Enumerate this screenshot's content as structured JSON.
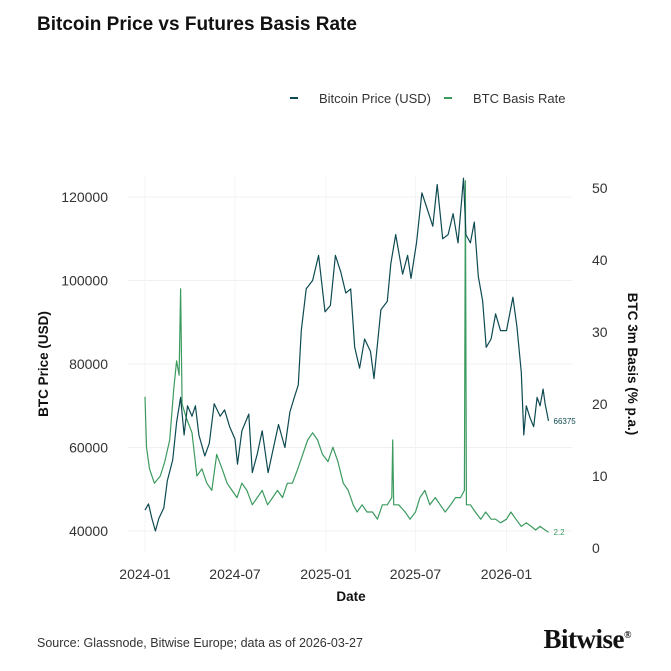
{
  "title": "Bitcoin Price vs Futures Basis Rate",
  "source": "Source: Glassnode, Bitwise Europe; data as of 2026-03-27",
  "logo": "Bitwise®",
  "chart_data": {
    "type": "line",
    "title": "Bitcoin Price vs Futures Basis Rate",
    "xlabel": "Date",
    "ylabel_left": "BTC Price (USD)",
    "ylabel_right": "BTC 3m Basis (% p.a.)",
    "x_ticks": [
      "2024-01",
      "2024-07",
      "2025-01",
      "2025-07",
      "2026-01"
    ],
    "y_left_ticks": [
      40000,
      60000,
      80000,
      100000,
      120000
    ],
    "y_right_ticks": [
      0,
      10,
      20,
      30,
      40,
      50
    ],
    "y_left_range": [
      36000,
      124000
    ],
    "y_right_range": [
      -1,
      52
    ],
    "grid": true,
    "legend_position": "top-right",
    "colors": {
      "price": "#0e4a52",
      "basis": "#3c9a5f"
    },
    "series": [
      {
        "name": "Bitcoin Price (USD)",
        "axis": "left",
        "end_label": "66375",
        "points": [
          [
            "2024-01-01",
            45000
          ],
          [
            "2024-01-08",
            46500
          ],
          [
            "2024-01-15",
            43000
          ],
          [
            "2024-01-22",
            40000
          ],
          [
            "2024-01-29",
            43000
          ],
          [
            "2024-02-08",
            45500
          ],
          [
            "2024-02-15",
            52000
          ],
          [
            "2024-02-26",
            57000
          ],
          [
            "2024-03-05",
            66000
          ],
          [
            "2024-03-13",
            72000
          ],
          [
            "2024-03-20",
            63000
          ],
          [
            "2024-03-27",
            70000
          ],
          [
            "2024-04-05",
            67500
          ],
          [
            "2024-04-12",
            70000
          ],
          [
            "2024-04-19",
            63000
          ],
          [
            "2024-05-01",
            58000
          ],
          [
            "2024-05-10",
            61000
          ],
          [
            "2024-05-20",
            70500
          ],
          [
            "2024-06-01",
            67500
          ],
          [
            "2024-06-10",
            69000
          ],
          [
            "2024-06-20",
            65000
          ],
          [
            "2024-07-01",
            62000
          ],
          [
            "2024-07-06",
            56000
          ],
          [
            "2024-07-15",
            64000
          ],
          [
            "2024-07-29",
            68000
          ],
          [
            "2024-08-05",
            54000
          ],
          [
            "2024-08-15",
            58500
          ],
          [
            "2024-08-25",
            64000
          ],
          [
            "2024-09-06",
            54000
          ],
          [
            "2024-09-15",
            59000
          ],
          [
            "2024-09-27",
            65500
          ],
          [
            "2024-10-10",
            60000
          ],
          [
            "2024-10-20",
            68500
          ],
          [
            "2024-10-29",
            72000
          ],
          [
            "2024-11-06",
            75000
          ],
          [
            "2024-11-12",
            88000
          ],
          [
            "2024-11-22",
            98000
          ],
          [
            "2024-12-05",
            100000
          ],
          [
            "2024-12-17",
            106000
          ],
          [
            "2024-12-30",
            92500
          ],
          [
            "2025-01-10",
            94000
          ],
          [
            "2025-01-20",
            106000
          ],
          [
            "2025-01-31",
            102000
          ],
          [
            "2025-02-10",
            97000
          ],
          [
            "2025-02-20",
            98000
          ],
          [
            "2025-02-28",
            84000
          ],
          [
            "2025-03-10",
            79000
          ],
          [
            "2025-03-20",
            86000
          ],
          [
            "2025-04-01",
            83000
          ],
          [
            "2025-04-08",
            76500
          ],
          [
            "2025-04-22",
            93000
          ],
          [
            "2025-05-05",
            95000
          ],
          [
            "2025-05-12",
            104000
          ],
          [
            "2025-05-22",
            111000
          ],
          [
            "2025-06-05",
            101500
          ],
          [
            "2025-06-15",
            106000
          ],
          [
            "2025-06-22",
            100500
          ],
          [
            "2025-07-03",
            109000
          ],
          [
            "2025-07-14",
            121000
          ],
          [
            "2025-07-25",
            117000
          ],
          [
            "2025-08-05",
            113000
          ],
          [
            "2025-08-14",
            123000
          ],
          [
            "2025-08-25",
            110000
          ],
          [
            "2025-09-05",
            111000
          ],
          [
            "2025-09-15",
            116000
          ],
          [
            "2025-09-25",
            109000
          ],
          [
            "2025-10-06",
            124500
          ],
          [
            "2025-10-11",
            111000
          ],
          [
            "2025-10-20",
            109000
          ],
          [
            "2025-10-28",
            114000
          ],
          [
            "2025-11-05",
            101000
          ],
          [
            "2025-11-14",
            95000
          ],
          [
            "2025-11-21",
            84000
          ],
          [
            "2025-12-01",
            86000
          ],
          [
            "2025-12-10",
            92000
          ],
          [
            "2025-12-20",
            88000
          ],
          [
            "2026-01-01",
            88000
          ],
          [
            "2026-01-14",
            96000
          ],
          [
            "2026-01-22",
            89000
          ],
          [
            "2026-01-31",
            78000
          ],
          [
            "2026-02-05",
            63000
          ],
          [
            "2026-02-10",
            70000
          ],
          [
            "2026-02-18",
            67000
          ],
          [
            "2026-02-25",
            65000
          ],
          [
            "2026-03-04",
            72000
          ],
          [
            "2026-03-10",
            70000
          ],
          [
            "2026-03-16",
            74000
          ],
          [
            "2026-03-20",
            70500
          ],
          [
            "2026-03-27",
            66375
          ]
        ]
      },
      {
        "name": "BTC Basis Rate",
        "axis": "right",
        "end_label": "2.2",
        "points": [
          [
            "2024-01-01",
            21
          ],
          [
            "2024-01-04",
            14
          ],
          [
            "2024-01-10",
            11
          ],
          [
            "2024-01-20",
            9
          ],
          [
            "2024-02-01",
            10
          ],
          [
            "2024-02-10",
            12
          ],
          [
            "2024-02-20",
            15
          ],
          [
            "2024-02-28",
            22
          ],
          [
            "2024-03-05",
            26
          ],
          [
            "2024-03-10",
            24
          ],
          [
            "2024-03-13",
            36
          ],
          [
            "2024-03-16",
            20
          ],
          [
            "2024-03-25",
            18
          ],
          [
            "2024-04-05",
            16
          ],
          [
            "2024-04-15",
            10
          ],
          [
            "2024-04-25",
            11
          ],
          [
            "2024-05-05",
            9
          ],
          [
            "2024-05-15",
            8
          ],
          [
            "2024-05-25",
            13
          ],
          [
            "2024-06-05",
            11
          ],
          [
            "2024-06-15",
            9
          ],
          [
            "2024-06-25",
            8
          ],
          [
            "2024-07-05",
            7
          ],
          [
            "2024-07-15",
            9
          ],
          [
            "2024-07-25",
            8
          ],
          [
            "2024-08-05",
            6
          ],
          [
            "2024-08-15",
            7
          ],
          [
            "2024-08-25",
            8
          ],
          [
            "2024-09-05",
            6
          ],
          [
            "2024-09-15",
            7
          ],
          [
            "2024-09-25",
            8
          ],
          [
            "2024-10-05",
            7
          ],
          [
            "2024-10-15",
            9
          ],
          [
            "2024-10-25",
            9
          ],
          [
            "2024-11-05",
            11
          ],
          [
            "2024-11-15",
            13
          ],
          [
            "2024-11-25",
            15
          ],
          [
            "2024-12-05",
            16
          ],
          [
            "2024-12-15",
            15
          ],
          [
            "2024-12-25",
            13
          ],
          [
            "2025-01-05",
            12
          ],
          [
            "2025-01-15",
            14
          ],
          [
            "2025-01-25",
            12
          ],
          [
            "2025-02-05",
            9
          ],
          [
            "2025-02-15",
            8
          ],
          [
            "2025-02-25",
            6
          ],
          [
            "2025-03-05",
            5
          ],
          [
            "2025-03-15",
            6
          ],
          [
            "2025-03-25",
            5
          ],
          [
            "2025-04-05",
            5
          ],
          [
            "2025-04-15",
            4
          ],
          [
            "2025-04-25",
            6
          ],
          [
            "2025-05-05",
            6
          ],
          [
            "2025-05-14",
            7
          ],
          [
            "2025-05-16",
            15
          ],
          [
            "2025-05-18",
            6
          ],
          [
            "2025-05-28",
            6
          ],
          [
            "2025-06-10",
            5
          ],
          [
            "2025-06-20",
            4
          ],
          [
            "2025-07-01",
            5
          ],
          [
            "2025-07-10",
            7
          ],
          [
            "2025-07-20",
            8
          ],
          [
            "2025-07-30",
            6
          ],
          [
            "2025-08-10",
            7
          ],
          [
            "2025-08-20",
            6
          ],
          [
            "2025-08-30",
            5
          ],
          [
            "2025-09-10",
            6
          ],
          [
            "2025-09-20",
            7
          ],
          [
            "2025-09-30",
            7
          ],
          [
            "2025-10-08",
            8
          ],
          [
            "2025-10-10",
            51
          ],
          [
            "2025-10-12",
            6
          ],
          [
            "2025-10-20",
            6
          ],
          [
            "2025-10-30",
            5
          ],
          [
            "2025-11-10",
            4
          ],
          [
            "2025-11-20",
            5
          ],
          [
            "2025-12-01",
            4
          ],
          [
            "2025-12-10",
            4
          ],
          [
            "2025-12-20",
            3.5
          ],
          [
            "2026-01-01",
            4
          ],
          [
            "2026-01-10",
            5
          ],
          [
            "2026-01-20",
            4
          ],
          [
            "2026-01-31",
            3
          ],
          [
            "2026-02-10",
            3.5
          ],
          [
            "2026-02-20",
            3
          ],
          [
            "2026-03-01",
            2.5
          ],
          [
            "2026-03-10",
            3
          ],
          [
            "2026-03-20",
            2.5
          ],
          [
            "2026-03-27",
            2.2
          ]
        ]
      }
    ]
  }
}
